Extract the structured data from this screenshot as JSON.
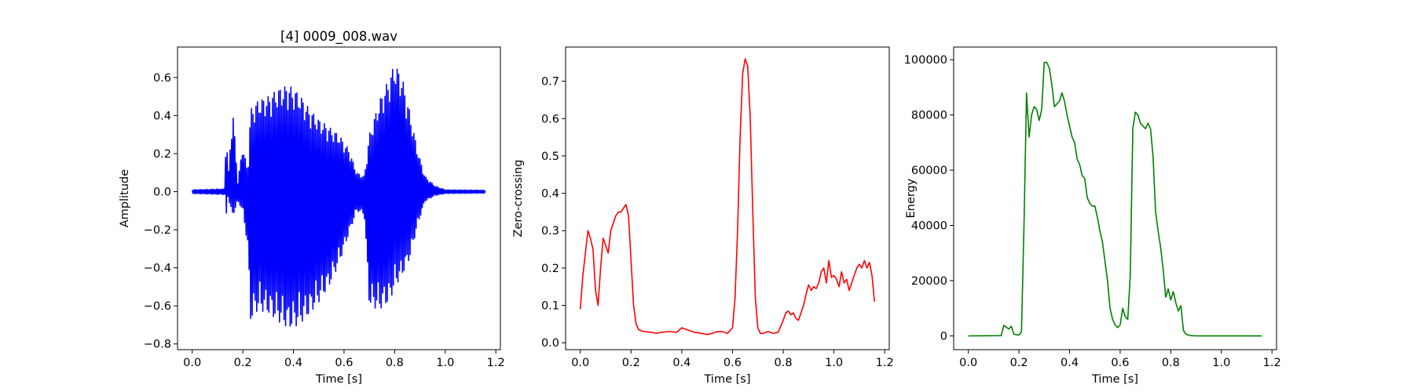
{
  "chart_data": [
    {
      "type": "line",
      "title": "[4] 0009_008.wav",
      "xlabel": "Time [s]",
      "ylabel": "Amplitude",
      "xlim": [
        -0.058,
        1.218
      ],
      "ylim": [
        -0.83,
        0.76
      ],
      "xticks": [
        0.0,
        0.2,
        0.4,
        0.6,
        0.8,
        1.0,
        1.2
      ],
      "xtick_labels": [
        "0.0",
        "0.2",
        "0.4",
        "0.6",
        "0.8",
        "1.0",
        "1.2"
      ],
      "yticks": [
        -0.8,
        -0.6,
        -0.4,
        -0.2,
        0.0,
        0.2,
        0.4,
        0.6
      ],
      "ytick_labels": [
        "−0.8",
        "−0.6",
        "−0.4",
        "−0.2",
        "0.0",
        "0.2",
        "0.4",
        "0.6"
      ],
      "grid": false,
      "series": [
        {
          "color": "#0000ff",
          "render": "waveform",
          "sample_step": 0.003,
          "envelope_upper": [
            [
              0.0,
              0.01
            ],
            [
              0.13,
              0.015
            ],
            [
              0.135,
              0.54
            ],
            [
              0.14,
              0.02
            ],
            [
              0.16,
              0.45
            ],
            [
              0.18,
              0.05
            ],
            [
              0.2,
              0.25
            ],
            [
              0.22,
              0.1
            ],
            [
              0.23,
              0.43
            ],
            [
              0.26,
              0.48
            ],
            [
              0.3,
              0.5
            ],
            [
              0.34,
              0.54
            ],
            [
              0.38,
              0.56
            ],
            [
              0.42,
              0.52
            ],
            [
              0.46,
              0.44
            ],
            [
              0.5,
              0.38
            ],
            [
              0.54,
              0.34
            ],
            [
              0.58,
              0.3
            ],
            [
              0.62,
              0.22
            ],
            [
              0.65,
              0.1
            ],
            [
              0.68,
              0.08
            ],
            [
              0.7,
              0.3
            ],
            [
              0.74,
              0.48
            ],
            [
              0.78,
              0.6
            ],
            [
              0.8,
              0.68
            ],
            [
              0.83,
              0.6
            ],
            [
              0.86,
              0.42
            ],
            [
              0.89,
              0.22
            ],
            [
              0.92,
              0.08
            ],
            [
              0.96,
              0.03
            ],
            [
              1.0,
              0.01
            ],
            [
              1.16,
              0.008
            ]
          ],
          "envelope_lower": [
            [
              0.0,
              -0.01
            ],
            [
              0.13,
              -0.015
            ],
            [
              0.135,
              -0.14
            ],
            [
              0.14,
              -0.02
            ],
            [
              0.16,
              -0.13
            ],
            [
              0.18,
              -0.05
            ],
            [
              0.2,
              -0.1
            ],
            [
              0.22,
              -0.3
            ],
            [
              0.23,
              -0.68
            ],
            [
              0.26,
              -0.62
            ],
            [
              0.3,
              -0.64
            ],
            [
              0.34,
              -0.68
            ],
            [
              0.38,
              -0.72
            ],
            [
              0.42,
              -0.7
            ],
            [
              0.46,
              -0.65
            ],
            [
              0.5,
              -0.58
            ],
            [
              0.54,
              -0.5
            ],
            [
              0.58,
              -0.38
            ],
            [
              0.62,
              -0.22
            ],
            [
              0.65,
              -0.1
            ],
            [
              0.68,
              -0.12
            ],
            [
              0.7,
              -0.6
            ],
            [
              0.74,
              -0.62
            ],
            [
              0.78,
              -0.58
            ],
            [
              0.8,
              -0.5
            ],
            [
              0.83,
              -0.44
            ],
            [
              0.86,
              -0.35
            ],
            [
              0.89,
              -0.18
            ],
            [
              0.92,
              -0.05
            ],
            [
              0.96,
              -0.02
            ],
            [
              1.0,
              -0.01
            ],
            [
              1.16,
              -0.008
            ]
          ]
        }
      ]
    },
    {
      "type": "line",
      "title": "",
      "xlabel": "Time [s]",
      "ylabel": "Zero-crossing",
      "xlim": [
        -0.058,
        1.218
      ],
      "ylim": [
        -0.0185,
        0.7915
      ],
      "xticks": [
        0.0,
        0.2,
        0.4,
        0.6,
        0.8,
        1.0,
        1.2
      ],
      "xtick_labels": [
        "0.0",
        "0.2",
        "0.4",
        "0.6",
        "0.8",
        "1.0",
        "1.2"
      ],
      "yticks": [
        0.0,
        0.1,
        0.2,
        0.3,
        0.4,
        0.5,
        0.6,
        0.7
      ],
      "ytick_labels": [
        "0.0",
        "0.1",
        "0.2",
        "0.3",
        "0.4",
        "0.5",
        "0.6",
        "0.7"
      ],
      "grid": false,
      "series": [
        {
          "color": "#ff0000",
          "x": [
            0.0,
            0.01,
            0.02,
            0.03,
            0.04,
            0.05,
            0.06,
            0.07,
            0.08,
            0.09,
            0.1,
            0.11,
            0.12,
            0.13,
            0.14,
            0.15,
            0.16,
            0.17,
            0.18,
            0.19,
            0.2,
            0.21,
            0.22,
            0.23,
            0.25,
            0.28,
            0.3,
            0.32,
            0.35,
            0.38,
            0.4,
            0.42,
            0.45,
            0.48,
            0.5,
            0.52,
            0.54,
            0.56,
            0.58,
            0.6,
            0.61,
            0.62,
            0.63,
            0.64,
            0.65,
            0.66,
            0.67,
            0.68,
            0.69,
            0.7,
            0.71,
            0.72,
            0.74,
            0.76,
            0.78,
            0.8,
            0.81,
            0.82,
            0.83,
            0.84,
            0.85,
            0.86,
            0.87,
            0.88,
            0.89,
            0.9,
            0.91,
            0.92,
            0.93,
            0.94,
            0.95,
            0.96,
            0.97,
            0.98,
            0.99,
            1.0,
            1.01,
            1.02,
            1.03,
            1.04,
            1.05,
            1.06,
            1.07,
            1.08,
            1.09,
            1.1,
            1.11,
            1.12,
            1.13,
            1.14,
            1.15,
            1.16
          ],
          "y": [
            0.09,
            0.18,
            0.24,
            0.3,
            0.28,
            0.25,
            0.14,
            0.1,
            0.2,
            0.28,
            0.26,
            0.24,
            0.3,
            0.32,
            0.34,
            0.35,
            0.35,
            0.36,
            0.37,
            0.34,
            0.22,
            0.1,
            0.05,
            0.035,
            0.03,
            0.028,
            0.025,
            0.028,
            0.03,
            0.028,
            0.04,
            0.035,
            0.028,
            0.025,
            0.022,
            0.025,
            0.03,
            0.03,
            0.025,
            0.04,
            0.12,
            0.3,
            0.55,
            0.72,
            0.76,
            0.74,
            0.6,
            0.35,
            0.12,
            0.04,
            0.025,
            0.025,
            0.03,
            0.025,
            0.028,
            0.06,
            0.08,
            0.085,
            0.075,
            0.08,
            0.065,
            0.06,
            0.08,
            0.1,
            0.13,
            0.155,
            0.14,
            0.15,
            0.145,
            0.16,
            0.19,
            0.2,
            0.16,
            0.22,
            0.175,
            0.18,
            0.17,
            0.15,
            0.19,
            0.16,
            0.17,
            0.14,
            0.16,
            0.18,
            0.2,
            0.21,
            0.2,
            0.22,
            0.2,
            0.215,
            0.18,
            0.11
          ]
        }
      ]
    },
    {
      "type": "line",
      "title": "",
      "xlabel": "Time [s]",
      "ylabel": "Energy",
      "xlim": [
        -0.058,
        1.218
      ],
      "ylim": [
        -4980,
        104580
      ],
      "xticks": [
        0.0,
        0.2,
        0.4,
        0.6,
        0.8,
        1.0,
        1.2
      ],
      "xtick_labels": [
        "0.0",
        "0.2",
        "0.4",
        "0.6",
        "0.8",
        "1.0",
        "1.2"
      ],
      "yticks": [
        0,
        20000,
        40000,
        60000,
        80000,
        100000
      ],
      "ytick_labels": [
        "0",
        "20000",
        "40000",
        "60000",
        "80000",
        "100000"
      ],
      "grid": false,
      "series": [
        {
          "color": "#008000",
          "x": [
            0.0,
            0.13,
            0.14,
            0.16,
            0.17,
            0.18,
            0.2,
            0.21,
            0.22,
            0.23,
            0.24,
            0.25,
            0.26,
            0.27,
            0.28,
            0.29,
            0.3,
            0.31,
            0.32,
            0.33,
            0.34,
            0.35,
            0.36,
            0.37,
            0.38,
            0.39,
            0.4,
            0.41,
            0.42,
            0.43,
            0.44,
            0.45,
            0.46,
            0.47,
            0.48,
            0.49,
            0.5,
            0.51,
            0.52,
            0.53,
            0.54,
            0.55,
            0.56,
            0.57,
            0.58,
            0.59,
            0.6,
            0.61,
            0.62,
            0.63,
            0.64,
            0.65,
            0.66,
            0.67,
            0.68,
            0.69,
            0.7,
            0.71,
            0.72,
            0.73,
            0.74,
            0.75,
            0.76,
            0.77,
            0.78,
            0.79,
            0.8,
            0.81,
            0.82,
            0.83,
            0.84,
            0.85,
            0.86,
            0.87,
            0.88,
            0.89,
            0.9,
            0.91,
            0.92,
            0.93,
            0.95,
            1.0,
            1.16
          ],
          "y": [
            0,
            100,
            3800,
            2500,
            3500,
            600,
            300,
            1500,
            40000,
            88000,
            72000,
            80000,
            83000,
            82000,
            78000,
            82000,
            99000,
            99000,
            97000,
            91000,
            83000,
            84000,
            85000,
            88000,
            85000,
            80000,
            76000,
            72000,
            70000,
            64000,
            62000,
            58000,
            57000,
            50000,
            48000,
            47000,
            47000,
            43000,
            38000,
            34000,
            27000,
            20000,
            10000,
            6000,
            4000,
            3000,
            4000,
            10000,
            7000,
            6000,
            22000,
            75000,
            81000,
            80000,
            77000,
            76000,
            75000,
            77000,
            75000,
            65000,
            45000,
            38000,
            32000,
            24000,
            14000,
            17000,
            13000,
            16000,
            12000,
            9000,
            11000,
            2000,
            600,
            300,
            100,
            50,
            20,
            0,
            0,
            0,
            0,
            0,
            0
          ]
        }
      ]
    }
  ]
}
